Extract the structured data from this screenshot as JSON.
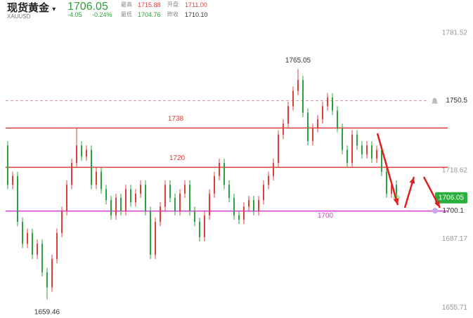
{
  "header": {
    "name": "现货黄金",
    "symbol": "XAUUSD",
    "price": "1706.05",
    "change": "-4.05",
    "change_pct": "-0.24%",
    "stats": [
      {
        "label": "最高",
        "value": "1715.88"
      },
      {
        "label": "开盘",
        "value": "1711.00"
      },
      {
        "label": "最低",
        "value": "1704.76"
      },
      {
        "label": "昨收",
        "value": "1710.10"
      }
    ]
  },
  "chart_data": {
    "type": "candlestick",
    "up_color": "#e0403c",
    "down_color": "#2ca03c",
    "open": [
      1730,
      1712,
      1716,
      1695,
      1685,
      1690,
      1680,
      1685,
      1672,
      1665,
      1678,
      1690,
      1700,
      1712,
      1722,
      1730,
      1725,
      1728,
      1712,
      1718,
      1710,
      1705,
      1698,
      1706,
      1700,
      1710,
      1704,
      1708,
      1712,
      1700,
      1680,
      1695,
      1702,
      1712,
      1706,
      1700,
      1708,
      1712,
      1700,
      1695,
      1688,
      1698,
      1708,
      1716,
      1722,
      1712,
      1706,
      1698,
      1696,
      1702,
      1705,
      1700,
      1705,
      1712,
      1716,
      1722,
      1735,
      1740,
      1748,
      1755,
      1760,
      1745,
      1732,
      1738,
      1742,
      1748,
      1752,
      1746,
      1738,
      1728,
      1722,
      1735,
      1730,
      1726,
      1730,
      1724,
      1728,
      1718,
      1708,
      1712
    ],
    "high": [
      1732,
      1718,
      1718,
      1697,
      1692,
      1692,
      1687,
      1687,
      1674,
      1680,
      1692,
      1702,
      1714,
      1724,
      1738,
      1732,
      1730,
      1730,
      1720,
      1720,
      1712,
      1707,
      1708,
      1708,
      1712,
      1712,
      1710,
      1714,
      1714,
      1702,
      1697,
      1704,
      1714,
      1714,
      1708,
      1710,
      1714,
      1714,
      1702,
      1697,
      1700,
      1710,
      1718,
      1724,
      1724,
      1714,
      1708,
      1700,
      1704,
      1707,
      1707,
      1707,
      1714,
      1718,
      1724,
      1737,
      1742,
      1750,
      1757,
      1765.05,
      1762,
      1747,
      1740,
      1744,
      1750,
      1754,
      1754,
      1748,
      1740,
      1730,
      1737,
      1737,
      1732,
      1732,
      1732,
      1730,
      1730,
      1720,
      1714,
      1714
    ],
    "low": [
      1710,
      1710,
      1693,
      1683,
      1683,
      1678,
      1678,
      1670,
      1659.46,
      1663,
      1676,
      1688,
      1698,
      1710,
      1720,
      1723,
      1723,
      1710,
      1710,
      1708,
      1703,
      1696,
      1696,
      1698,
      1698,
      1702,
      1702,
      1706,
      1698,
      1678,
      1678,
      1693,
      1700,
      1704,
      1698,
      1698,
      1706,
      1698,
      1693,
      1686,
      1686,
      1696,
      1706,
      1714,
      1710,
      1704,
      1696,
      1694,
      1694,
      1700,
      1698,
      1698,
      1703,
      1710,
      1714,
      1720,
      1733,
      1738,
      1746,
      1753,
      1743,
      1730,
      1730,
      1736,
      1740,
      1746,
      1744,
      1736,
      1726,
      1720,
      1720,
      1728,
      1724,
      1724,
      1722,
      1722,
      1716,
      1706,
      1706,
      1704.76
    ],
    "close": [
      1712,
      1716,
      1695,
      1685,
      1690,
      1680,
      1685,
      1672,
      1665,
      1678,
      1690,
      1700,
      1712,
      1722,
      1730,
      1725,
      1728,
      1712,
      1718,
      1710,
      1705,
      1698,
      1706,
      1700,
      1710,
      1704,
      1708,
      1712,
      1700,
      1680,
      1695,
      1702,
      1712,
      1706,
      1700,
      1708,
      1712,
      1700,
      1695,
      1688,
      1698,
      1708,
      1716,
      1722,
      1712,
      1706,
      1698,
      1696,
      1702,
      1705,
      1700,
      1705,
      1712,
      1716,
      1722,
      1735,
      1740,
      1748,
      1755,
      1760,
      1745,
      1732,
      1738,
      1742,
      1748,
      1752,
      1746,
      1738,
      1728,
      1722,
      1735,
      1730,
      1726,
      1730,
      1724,
      1728,
      1718,
      1708,
      1712,
      1706.05
    ],
    "ylim": [
      1651,
      1787
    ],
    "yticks": [
      {
        "value": 1781.52,
        "label": "1781.52"
      },
      {
        "value": 1718.62,
        "label": "1718.62"
      },
      {
        "value": 1687.17,
        "label": "1687.17"
      },
      {
        "value": 1655.71,
        "label": "1655.71"
      }
    ],
    "hlines": [
      {
        "value": 1738,
        "color": "#e0403c"
      },
      {
        "value": 1720,
        "color": "#e0403c"
      },
      {
        "value": 1700,
        "color": "#d63ad6"
      }
    ],
    "alert": {
      "value": 1750.5,
      "color": "#e89a9a"
    },
    "line_tag": 1700.1,
    "price_tag_color": "#2cae3c"
  }
}
